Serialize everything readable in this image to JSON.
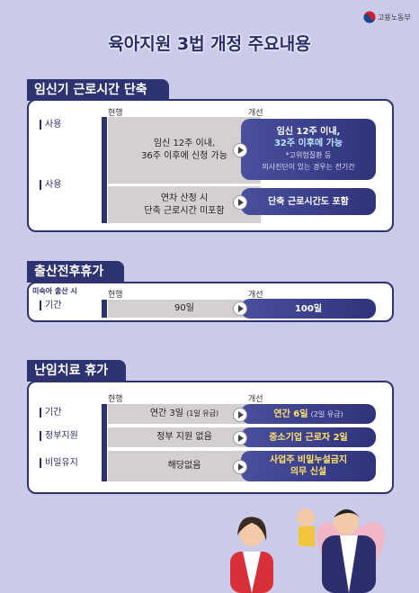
{
  "logo": "고용노동부",
  "title": "육아지원 3법 개정 주요내용",
  "sections": [
    {
      "title": "임신기 근로시간 단축",
      "col_current": "현행",
      "col_improved": "개선",
      "rows": [
        {
          "label": "사용",
          "current": [
            "임신 12주 이내,",
            "36주 이후에 신청 가능"
          ],
          "improved": [
            "임신 12주 이내,",
            "32주 이후에 가능"
          ],
          "note": [
            "*고위험질환 등",
            "의사진단이 있는 경우는 전기간"
          ]
        },
        {
          "label": "사용",
          "current": [
            "연차 산정 시",
            "단축 근로시간 미포함"
          ],
          "improved": [
            "단축 근로시간도 포함"
          ]
        }
      ]
    },
    {
      "title": "출산전후휴가",
      "col_current": "현행",
      "col_improved": "개선",
      "rows": [
        {
          "label_top": "미숙아 출산 시",
          "label": "기간",
          "current": [
            "90일"
          ],
          "improved": [
            "100일"
          ]
        }
      ]
    },
    {
      "title": "난임치료 휴가",
      "col_current": "현행",
      "col_improved": "개선",
      "rows": [
        {
          "label": "기간",
          "current": [
            "연간 3일",
            "(1일 유급)"
          ],
          "improved": [
            "연간 6일",
            "(2일 유급)"
          ]
        },
        {
          "label": "정부지원",
          "current": [
            "정부 지원 없음"
          ],
          "improved": [
            "중소기업 근로자 2일"
          ]
        },
        {
          "label": "비밀유지",
          "current": [
            "해당없음"
          ],
          "improved": [
            "사업주 비밀누설금지",
            "의무 신설"
          ]
        }
      ]
    }
  ]
}
